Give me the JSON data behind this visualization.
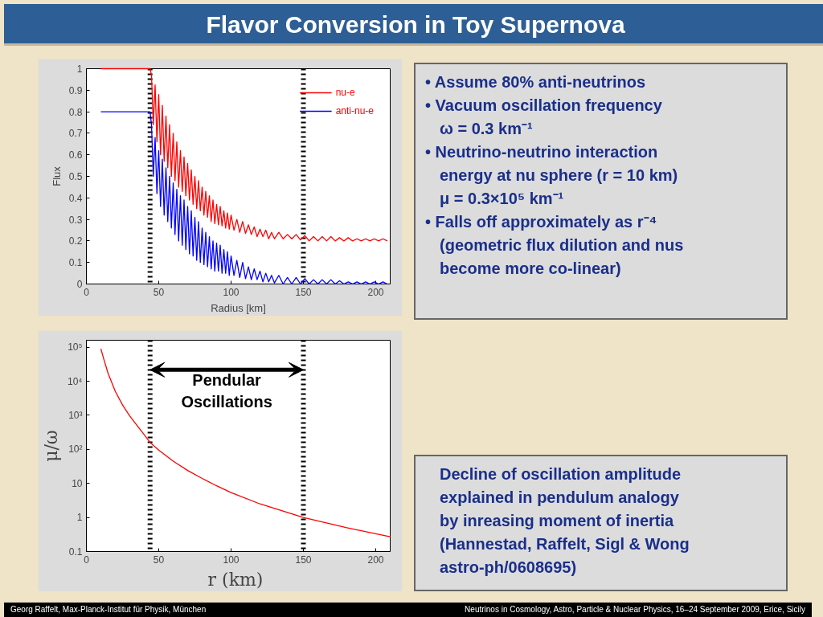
{
  "chart_data": [
    {
      "type": "line",
      "title": "Flavor Conversion in Toy Supernova",
      "xlabel": "Radius [km]",
      "ylabel": "Flux",
      "xlim": [
        0,
        210
      ],
      "ylim": [
        0,
        1
      ],
      "xticks": [
        0,
        50,
        100,
        150,
        200
      ],
      "yticks": [
        0,
        0.1,
        0.2,
        0.3,
        0.4,
        0.5,
        0.6,
        0.7,
        0.8,
        0.9,
        1
      ],
      "legend": "top right",
      "annotations": [
        "Georg Raffelt, Max-Planck-Institut für Physik, München",
        "Neutrinos in Cosmology, Astro, Particle & Nuclear Physics, 16–24 September 2009, Erice, Sicily"
      ],
      "ref_lines": [
        {
          "axis": "x",
          "value": 44,
          "color": "#000000",
          "line_style": "dotted"
        },
        {
          "axis": "x",
          "value": 150,
          "color": "#000000",
          "line_style": "dotted"
        }
      ],
      "x": [
        10,
        44,
        45,
        46.25,
        47.5,
        48.75,
        50,
        51.25,
        52.5,
        53.75,
        55,
        56.25,
        57.5,
        58.75,
        60,
        61.25,
        62.5,
        63.75,
        65,
        66.25,
        67.5,
        68.75,
        70,
        71.25,
        72.5,
        73.75,
        75,
        76.25,
        77.5,
        78.75,
        80,
        81.25,
        82.5,
        83.75,
        85,
        86.25,
        87.5,
        88.75,
        90,
        91.25,
        92.5,
        93.75,
        95,
        96.25,
        97.5,
        98.75,
        100,
        102,
        104,
        106,
        108,
        110,
        112,
        114,
        116,
        118,
        120,
        122,
        124,
        126,
        128,
        130,
        133,
        136,
        139,
        142,
        145,
        148,
        151,
        154,
        157,
        160,
        163,
        166,
        169,
        172,
        175,
        178,
        181,
        184,
        187,
        190,
        193,
        196,
        199,
        202,
        205,
        208
      ],
      "series": [
        {
          "name": "nu-e",
          "color": "#ff0000",
          "values": [
            1,
            1,
            0.97,
            0.74,
            0.925,
            0.66,
            0.88,
            0.6,
            0.83,
            0.57,
            0.78,
            0.54,
            0.74,
            0.5,
            0.7,
            0.48,
            0.66,
            0.45,
            0.62,
            0.43,
            0.59,
            0.41,
            0.56,
            0.39,
            0.53,
            0.37,
            0.5,
            0.35,
            0.48,
            0.34,
            0.45,
            0.32,
            0.43,
            0.31,
            0.41,
            0.29,
            0.39,
            0.28,
            0.37,
            0.275,
            0.36,
            0.27,
            0.34,
            0.26,
            0.33,
            0.255,
            0.32,
            0.25,
            0.3,
            0.24,
            0.29,
            0.235,
            0.275,
            0.23,
            0.265,
            0.22,
            0.255,
            0.22,
            0.25,
            0.21,
            0.24,
            0.21,
            0.24,
            0.21,
            0.23,
            0.21,
            0.23,
            0.205,
            0.225,
            0.2,
            0.22,
            0.2,
            0.22,
            0.2,
            0.22,
            0.2,
            0.215,
            0.2,
            0.215,
            0.2,
            0.21,
            0.2,
            0.21,
            0.2,
            0.21,
            0.2,
            0.21,
            0.2
          ]
        },
        {
          "name": "anti-nu-e",
          "color": "#0000ff",
          "values": [
            0.8,
            0.8,
            0.74,
            0.5,
            0.68,
            0.42,
            0.62,
            0.36,
            0.58,
            0.32,
            0.54,
            0.29,
            0.5,
            0.26,
            0.47,
            0.23,
            0.44,
            0.2,
            0.41,
            0.18,
            0.39,
            0.16,
            0.36,
            0.14,
            0.34,
            0.13,
            0.31,
            0.11,
            0.29,
            0.1,
            0.26,
            0.09,
            0.24,
            0.08,
            0.22,
            0.07,
            0.2,
            0.06,
            0.19,
            0.06,
            0.18,
            0.05,
            0.16,
            0.05,
            0.15,
            0.04,
            0.13,
            0.04,
            0.11,
            0.03,
            0.1,
            0.025,
            0.08,
            0.02,
            0.07,
            0.02,
            0.06,
            0.01,
            0.05,
            0.01,
            0.04,
            0.005,
            0.04,
            0,
            0.03,
            0,
            0.03,
            0,
            0.025,
            0,
            0.02,
            0,
            0.02,
            0,
            0.02,
            0,
            0.015,
            0,
            0.01,
            0,
            0.01,
            0,
            0.01,
            0,
            0.01,
            0,
            0.01,
            0
          ]
        }
      ]
    },
    {
      "type": "line",
      "xlabel": "r  (km)",
      "ylabel": "μ/ω",
      "log": true,
      "xlim": [
        0,
        210
      ],
      "ylim": [
        0.1,
        160000
      ],
      "xticks": [
        0,
        50,
        100,
        150,
        200
      ],
      "yticks": [
        {
          "value": 0.1,
          "label": "0.1"
        },
        {
          "value": 1,
          "label": "1"
        },
        {
          "value": 10,
          "label": "10"
        },
        {
          "value": 100,
          "label": "10²"
        },
        {
          "value": 1000,
          "label": "10³"
        },
        {
          "value": 10000,
          "label": "10⁴"
        },
        {
          "value": 100000,
          "label": "10⁵"
        }
      ],
      "annotations": [
        "Pendular\nOscillations"
      ],
      "ref_lines": [
        {
          "axis": "x",
          "value": 44,
          "color": "#000000",
          "line_style": "dotted"
        },
        {
          "axis": "x",
          "value": 150,
          "color": "#000000",
          "line_style": "dotted"
        }
      ],
      "x": [
        10,
        12,
        15,
        20,
        25,
        30,
        35,
        40,
        44,
        50,
        60,
        70,
        80,
        90,
        100,
        120,
        150,
        180,
        210
      ],
      "series": [
        {
          "color": "#ff0000",
          "values": [
            90000,
            45000,
            17000,
            5000,
            2000,
            950,
            500,
            270,
            160,
            95,
            45,
            24,
            14,
            8.5,
            5.4,
            2.5,
            1,
            0.5,
            0.27
          ]
        }
      ]
    },
    {
      "type": "other",
      "annotations": [
        "• Assume 80% anti-neutrinos",
        "• Vacuum oscillation frequency",
        "ω = 0.3 km⁻¹",
        "• Neutrino-neutrino interaction",
        "energy at nu sphere (r = 10 km)",
        "μ = 0.3×10⁵ km⁻¹",
        "• Falls off approximately as r⁻⁴",
        "(geometric flux dilution and nus",
        "become more co-linear)"
      ]
    },
    {
      "type": "other",
      "annotations": [
        "Decline of oscillation amplitude",
        "explained in pendulum analogy",
        "by inreasing moment of inertia",
        "(Hannestad, Raffelt, Sigl & Wong",
        "astro-ph/0608695)"
      ]
    }
  ]
}
